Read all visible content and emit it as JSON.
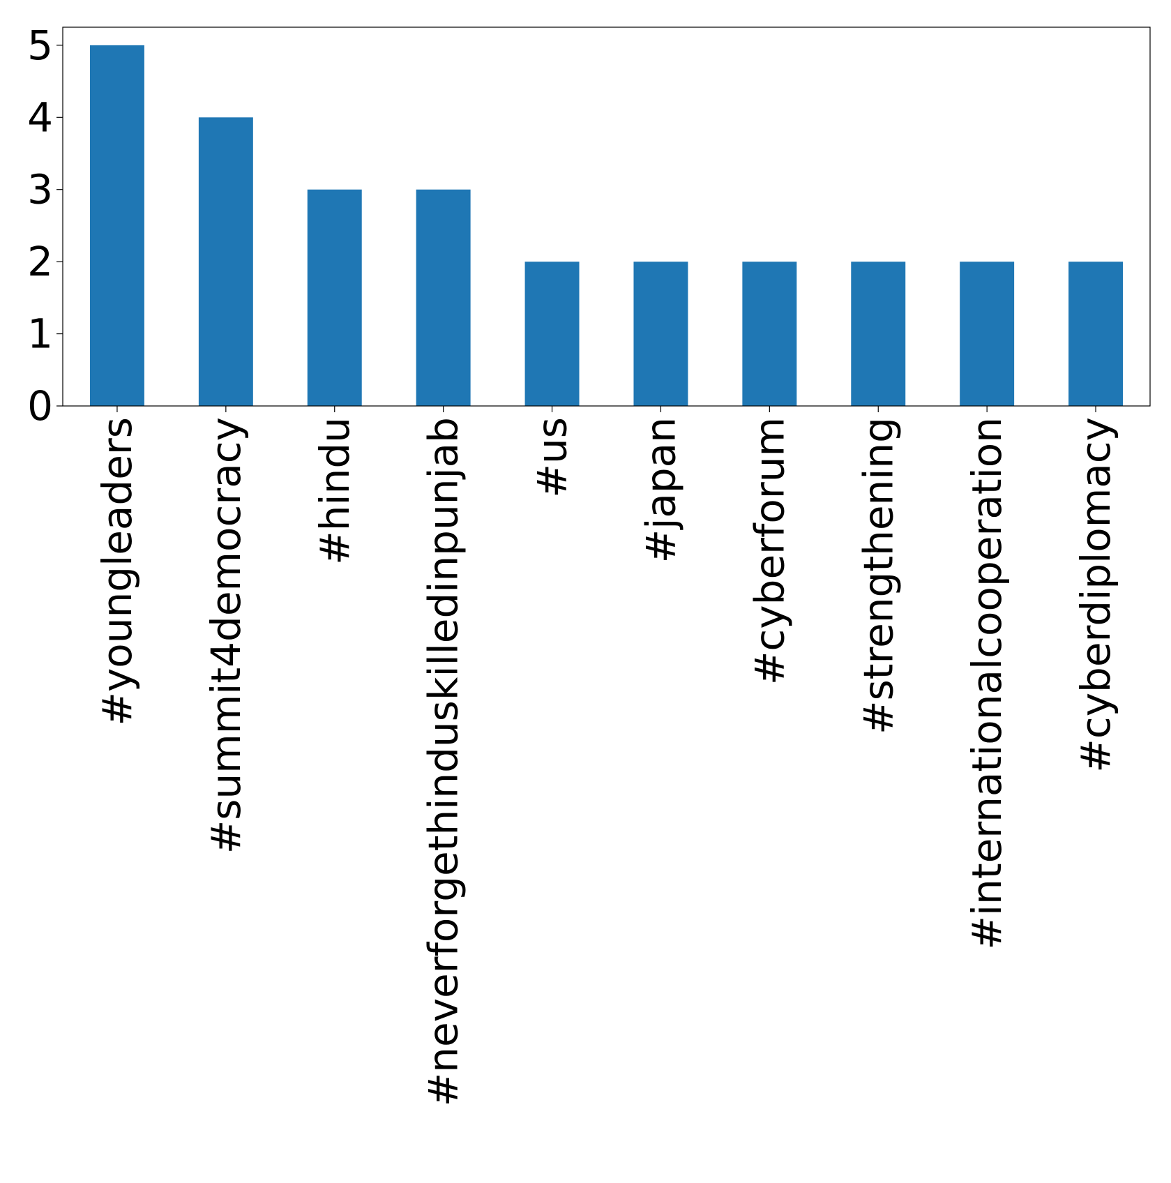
{
  "chart_data": {
    "type": "bar",
    "categories": [
      "#youngleaders",
      "#summit4democracy",
      "#hindu",
      "#neverforgethinduskilledinpunjab",
      "#us",
      "#japan",
      "#cyberforum",
      "#strengthening",
      "#internationalcooperation",
      "#cyberdiplomacy"
    ],
    "values": [
      5,
      4,
      3,
      3,
      2,
      2,
      2,
      2,
      2,
      2
    ],
    "title": "",
    "xlabel": "",
    "ylabel": "",
    "ylim": [
      0,
      5.25
    ],
    "yticks": [
      "0",
      "1",
      "2",
      "3",
      "4",
      "5"
    ],
    "grid": false,
    "bar_color": "#1f77b4",
    "x_tick_rotation": "vertical"
  }
}
